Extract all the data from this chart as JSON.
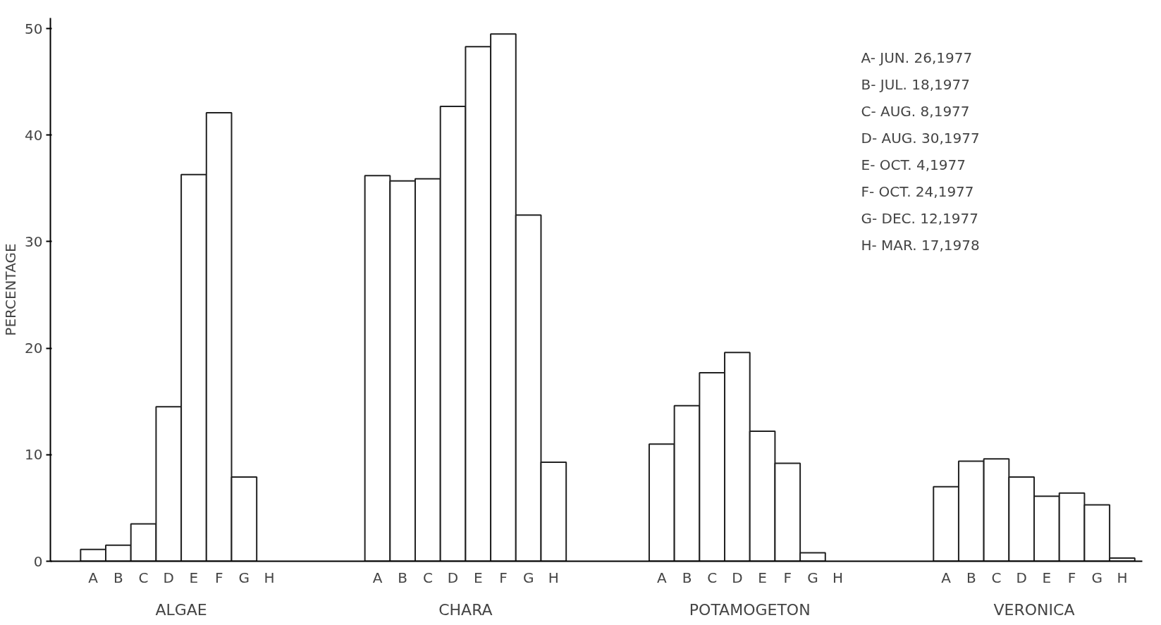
{
  "chart_data": {
    "type": "bar",
    "ylabel": "PERCENTAGE",
    "categories": [
      "ALGAE",
      "CHARA",
      "POTAMOGETON",
      "VERONICA"
    ],
    "series": [
      {
        "name": "A",
        "color": "#ffffff",
        "values": [
          1.1,
          36.2,
          11.0,
          7.0
        ]
      },
      {
        "name": "B",
        "color": "#ffffff",
        "values": [
          1.5,
          35.7,
          14.6,
          9.4
        ]
      },
      {
        "name": "C",
        "color": "#ffffff",
        "values": [
          3.5,
          35.9,
          17.7,
          9.6
        ]
      },
      {
        "name": "D",
        "color": "#ffffff",
        "values": [
          14.5,
          42.7,
          19.6,
          7.9
        ]
      },
      {
        "name": "E",
        "color": "#ffffff",
        "values": [
          36.3,
          48.3,
          12.2,
          6.1
        ]
      },
      {
        "name": "F",
        "color": "#ffffff",
        "values": [
          42.1,
          49.5,
          9.2,
          6.4
        ]
      },
      {
        "name": "G",
        "color": "#ffffff",
        "values": [
          7.9,
          32.5,
          0.8,
          5.3
        ]
      },
      {
        "name": "H",
        "color": "#ffffff",
        "values": [
          null,
          9.3,
          null,
          0.3
        ]
      }
    ],
    "ylim": [
      0,
      51
    ],
    "yticks": [
      0,
      10,
      20,
      30,
      40,
      50
    ],
    "grid": false,
    "annotations": [
      "A- JUN. 26,1977",
      "B- JUL. 18,1977",
      "C- AUG. 8,1977",
      "D- AUG. 30,1977",
      "E- OCT. 4,1977",
      "F- OCT. 24,1977",
      "G- DEC. 12,1977",
      "H- MAR. 17,1978"
    ]
  }
}
